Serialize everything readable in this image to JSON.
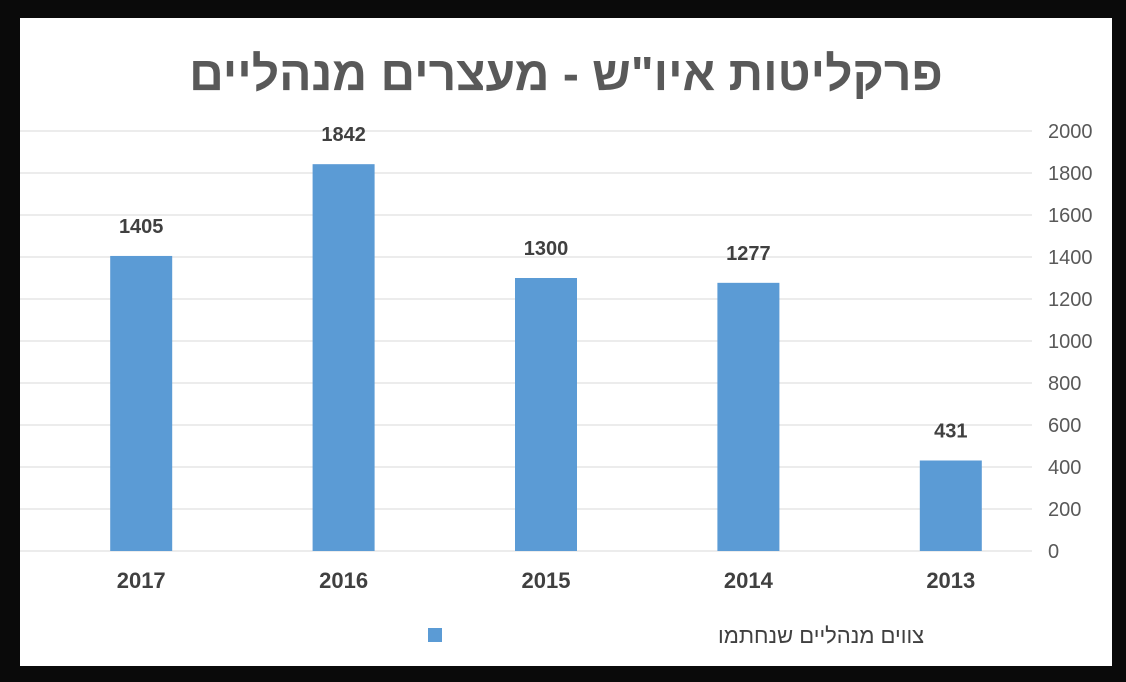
{
  "chart_data": {
    "type": "bar",
    "title": "פרקליטות איו\"ש - מעצרים מנהליים",
    "categories": [
      "2017",
      "2016",
      "2015",
      "2014",
      "2013"
    ],
    "series": [
      {
        "name": "צווים מנהליים שנחתמו",
        "values": [
          1405,
          1842,
          1300,
          1277,
          431
        ],
        "color": "#5B9BD5"
      }
    ],
    "y_ticks": [
      "0",
      "200",
      "400",
      "600",
      "800",
      "1000",
      "1200",
      "1400",
      "1600",
      "1800",
      "2000"
    ],
    "ylim": [
      0,
      2000
    ],
    "y_axis_side": "right",
    "grid": true,
    "legend_position": "bottom",
    "colors": {
      "bar": "#5B9BD5",
      "grid": "#D9D9D9",
      "frame": "#0A0A0A"
    }
  }
}
